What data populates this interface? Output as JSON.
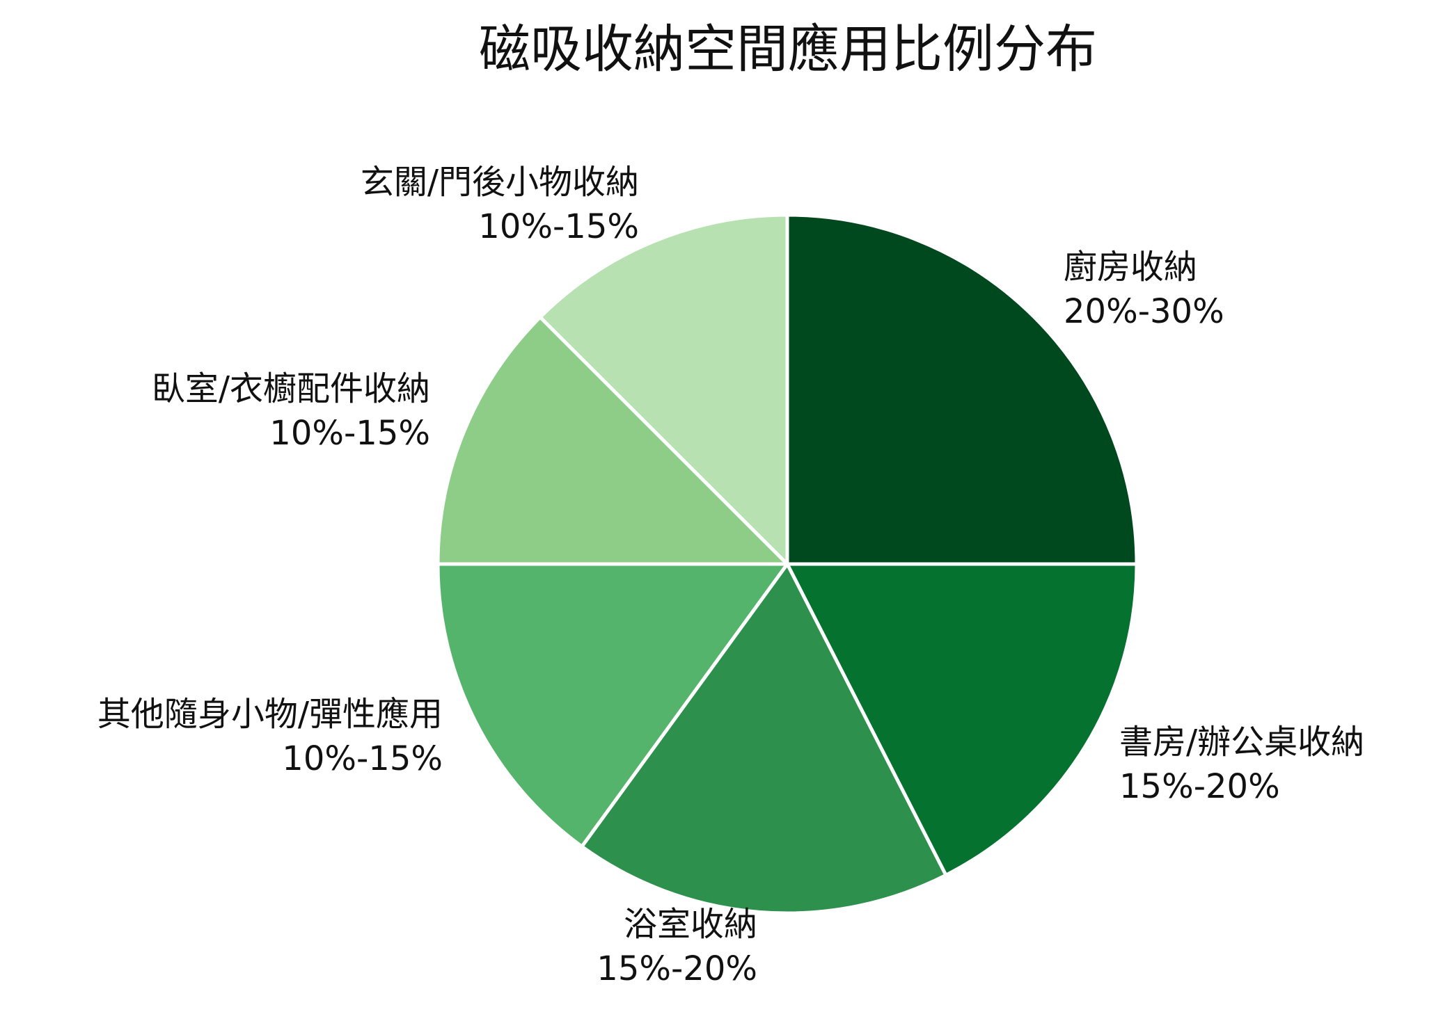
{
  "chart_data": {
    "type": "pie",
    "title": "磁吸收納空間應用比例分布",
    "slices": [
      {
        "label": "廚房收納",
        "range": "20%-30%",
        "value": 25,
        "color": "#00481e"
      },
      {
        "label": "書房/辦公桌收納",
        "range": "15%-20%",
        "value": 17.5,
        "color": "#067230"
      },
      {
        "label": "浴室收納",
        "range": "15%-20%",
        "value": 17.5,
        "color": "#2d914d"
      },
      {
        "label": "其他隨身小物/彈性應用",
        "range": "10%-15%",
        "value": 15,
        "color": "#55b46b"
      },
      {
        "label": "臥室/衣櫥配件收納",
        "range": "10%-15%",
        "value": 12.5,
        "color": "#8ecd88"
      },
      {
        "label": "玄關/門後小物收納",
        "range": "10%-15%",
        "value": 12.5,
        "color": "#b7e1b1"
      }
    ],
    "start_angle_deg": 0,
    "direction": "clockwise",
    "legend": "none"
  }
}
